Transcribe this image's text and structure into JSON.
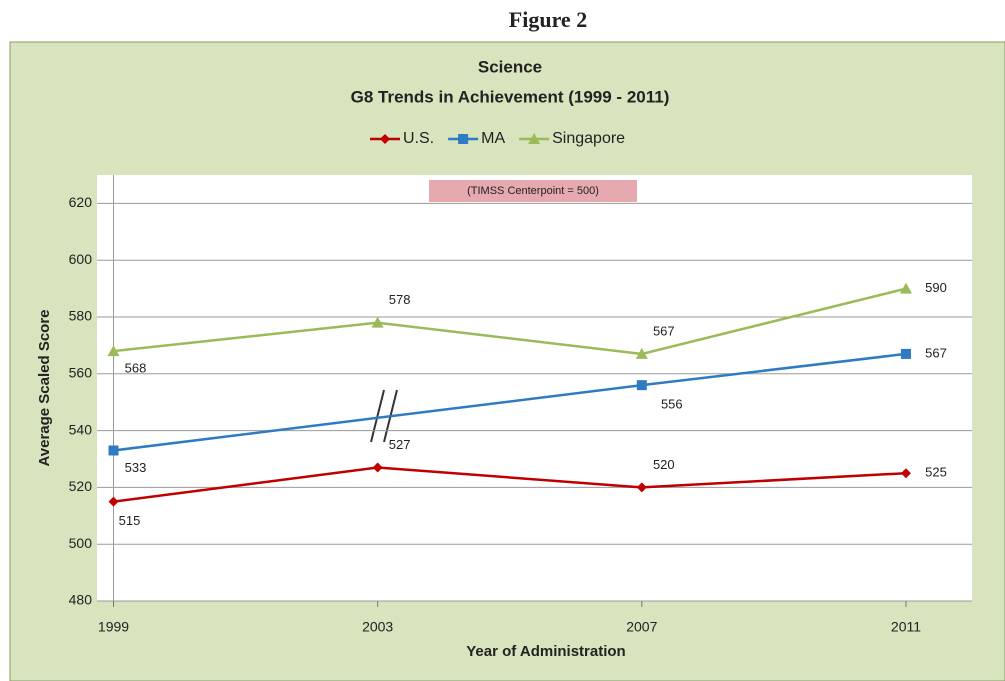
{
  "chart_data": {
    "type": "line",
    "figure_label": "Figure 2",
    "title": "Science",
    "subtitle": "G8 Trends in Achievement (1999 - 2011)",
    "annotation": "(TIMSS Centerpoint = 500)",
    "x_label": "Year of Administration",
    "y_label": "Average Scaled Score",
    "x": [
      1999,
      2003,
      2007,
      2011
    ],
    "series": [
      {
        "name": "U.S.",
        "color": "#c00000",
        "marker": "diamond",
        "x": [
          1999,
          2003,
          2007,
          2011
        ],
        "values": [
          515,
          527,
          520,
          525
        ]
      },
      {
        "name": "MA",
        "color": "#2e7bc4",
        "marker": "square",
        "x": [
          1999,
          2007,
          2011
        ],
        "values": [
          533,
          556,
          567
        ]
      },
      {
        "name": "Singapore",
        "color": "#9bbb59",
        "marker": "triangle",
        "x": [
          1999,
          2003,
          2007,
          2011
        ],
        "values": [
          568,
          578,
          567,
          590
        ]
      }
    ],
    "xlim": [
      1998.75,
      2012
    ],
    "xticks": [
      1999,
      2003,
      2007,
      2011
    ],
    "ylim": [
      480,
      630
    ],
    "yticks": [
      480,
      500,
      520,
      540,
      560,
      580,
      600,
      620
    ],
    "grid": true,
    "legend": "top"
  }
}
